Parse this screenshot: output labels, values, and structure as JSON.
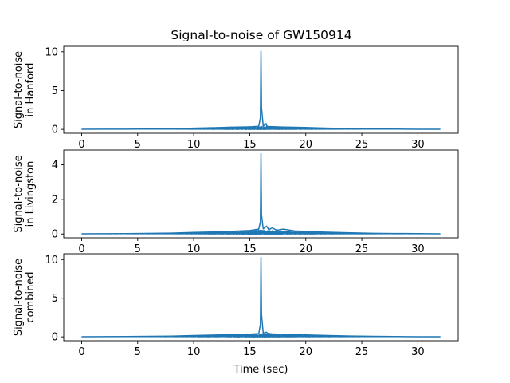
{
  "title": "Signal-to-noise of GW150914",
  "colors": {
    "series": "#1f77b4",
    "axes": "#000000",
    "background": "#ffffff"
  },
  "chart_data": [
    {
      "type": "line",
      "ylabel": [
        "Signal-to-noise",
        "in Hanford"
      ],
      "xlabel": "",
      "xlim": [
        -1.6,
        33.6
      ],
      "ylim": [
        -0.5,
        10.7
      ],
      "xticks": [
        0,
        5,
        10,
        15,
        20,
        25,
        30
      ],
      "yticks": [
        0,
        5,
        10
      ],
      "grid": false,
      "x": [
        0,
        4,
        8,
        10,
        12,
        13.5,
        15,
        15.8,
        15.95,
        16.0,
        16.05,
        16.2,
        16.45,
        16.5,
        16.6,
        17,
        18,
        19,
        20,
        21,
        22,
        24,
        26,
        28,
        30,
        32
      ],
      "values": [
        0.02,
        0.03,
        0.08,
        0.15,
        0.22,
        0.28,
        0.32,
        0.4,
        1.5,
        10.1,
        2.8,
        0.45,
        0.75,
        0.5,
        0.38,
        0.35,
        0.3,
        0.27,
        0.24,
        0.2,
        0.16,
        0.1,
        0.06,
        0.04,
        0.02,
        0.02
      ],
      "envelope": [
        0.01,
        0.03,
        0.1,
        0.2,
        0.28,
        0.35,
        0.4,
        0.45,
        0.45,
        0.45,
        0.45,
        0.45,
        0.45,
        0.45,
        0.42,
        0.38,
        0.34,
        0.3,
        0.26,
        0.22,
        0.18,
        0.12,
        0.07,
        0.04,
        0.02,
        0.02
      ]
    },
    {
      "type": "line",
      "ylabel": [
        "Signal-to-noise",
        "in Livingston"
      ],
      "xlabel": "",
      "xlim": [
        -1.6,
        33.6
      ],
      "ylim": [
        -0.22,
        4.85
      ],
      "xticks": [
        0,
        5,
        10,
        15,
        20,
        25,
        30
      ],
      "yticks": [
        0,
        2,
        4
      ],
      "grid": false,
      "x": [
        0,
        4,
        8,
        10,
        12,
        13.5,
        15,
        15.8,
        15.95,
        16.0,
        16.05,
        16.2,
        16.5,
        16.7,
        17,
        17.4,
        18,
        19,
        20,
        21,
        22,
        24,
        26,
        28,
        30,
        32
      ],
      "values": [
        0.01,
        0.02,
        0.05,
        0.09,
        0.12,
        0.16,
        0.2,
        0.28,
        0.7,
        4.65,
        1.1,
        0.3,
        0.45,
        0.25,
        0.35,
        0.22,
        0.28,
        0.18,
        0.15,
        0.12,
        0.1,
        0.07,
        0.04,
        0.03,
        0.02,
        0.01
      ],
      "envelope": [
        0.01,
        0.02,
        0.06,
        0.1,
        0.14,
        0.18,
        0.22,
        0.25,
        0.25,
        0.25,
        0.25,
        0.25,
        0.24,
        0.24,
        0.22,
        0.22,
        0.2,
        0.18,
        0.16,
        0.13,
        0.11,
        0.08,
        0.05,
        0.03,
        0.02,
        0.01
      ]
    },
    {
      "type": "line",
      "ylabel": [
        "Signal-to-noise",
        "combined"
      ],
      "xlabel": "Time (sec)",
      "xlim": [
        -1.6,
        33.6
      ],
      "ylim": [
        -0.5,
        10.75
      ],
      "xticks": [
        0,
        5,
        10,
        15,
        20,
        25,
        30
      ],
      "yticks": [
        0,
        5,
        10
      ],
      "grid": false,
      "x": [
        0,
        4,
        8,
        10,
        12,
        13.5,
        15,
        15.8,
        15.95,
        16.0,
        16.05,
        16.2,
        16.5,
        16.6,
        17,
        18,
        19,
        20,
        21,
        22,
        24,
        26,
        28,
        30,
        32
      ],
      "values": [
        0.02,
        0.04,
        0.1,
        0.17,
        0.24,
        0.3,
        0.34,
        0.42,
        1.6,
        10.3,
        2.9,
        0.5,
        0.6,
        0.45,
        0.38,
        0.33,
        0.29,
        0.25,
        0.21,
        0.17,
        0.11,
        0.07,
        0.04,
        0.02,
        0.02
      ],
      "envelope": [
        0.01,
        0.04,
        0.11,
        0.21,
        0.3,
        0.37,
        0.42,
        0.47,
        0.47,
        0.47,
        0.47,
        0.47,
        0.45,
        0.43,
        0.4,
        0.36,
        0.32,
        0.28,
        0.23,
        0.19,
        0.13,
        0.08,
        0.05,
        0.02,
        0.02
      ]
    }
  ]
}
